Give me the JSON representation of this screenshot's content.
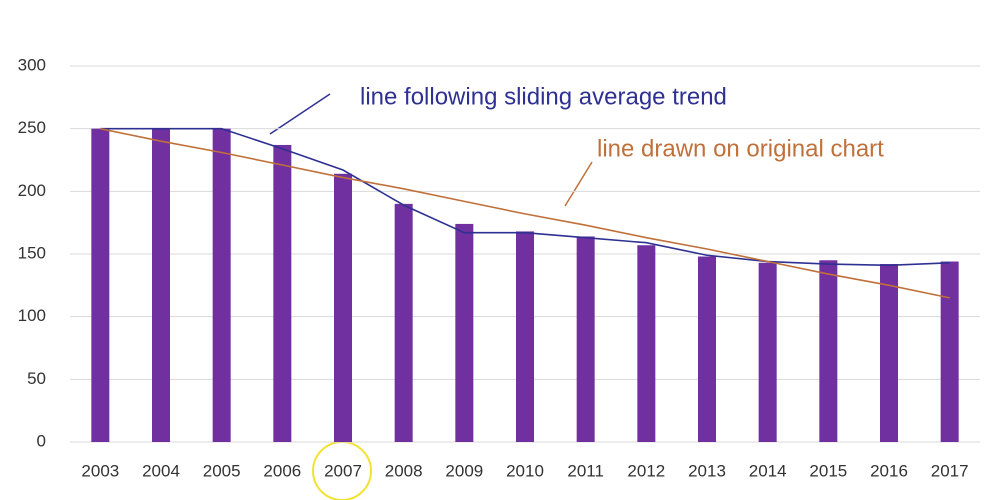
{
  "chart_data": {
    "type": "bar",
    "categories": [
      "2003",
      "2004",
      "2005",
      "2006",
      "2007",
      "2008",
      "2009",
      "2010",
      "2011",
      "2012",
      "2013",
      "2014",
      "2015",
      "2016",
      "2017"
    ],
    "values": [
      250,
      250,
      250,
      237,
      214,
      190,
      174,
      168,
      164,
      157,
      148,
      143,
      145,
      142,
      144
    ],
    "color": "#7030a0",
    "lines": [
      {
        "name": "line following sliding average trend",
        "color": "#2e3192",
        "values": [
          250,
          250,
          250,
          234,
          217,
          189,
          167,
          167,
          163,
          159,
          149,
          144,
          142,
          141,
          143
        ]
      },
      {
        "name": "line drawn on original chart",
        "color": "#c0703a",
        "values": [
          250,
          240,
          231,
          221,
          211,
          202,
          192,
          182,
          173,
          163,
          154,
          144,
          134,
          125,
          115
        ]
      }
    ],
    "ylim": [
      0,
      300
    ],
    "yticks": [
      0,
      50,
      100,
      150,
      200,
      250,
      300
    ],
    "grid": true
  }
}
